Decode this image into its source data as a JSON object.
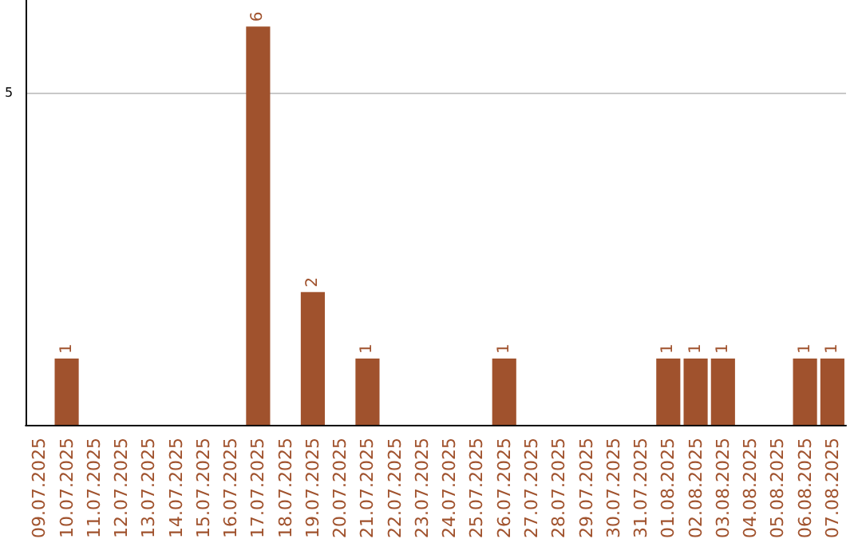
{
  "chart_data": {
    "type": "bar",
    "categories": [
      "09.07.2025",
      "10.07.2025",
      "11.07.2025",
      "12.07.2025",
      "13.07.2025",
      "14.07.2025",
      "15.07.2025",
      "16.07.2025",
      "17.07.2025",
      "18.07.2025",
      "19.07.2025",
      "20.07.2025",
      "21.07.2025",
      "22.07.2025",
      "23.07.2025",
      "24.07.2025",
      "25.07.2025",
      "26.07.2025",
      "27.07.2025",
      "28.07.2025",
      "29.07.2025",
      "30.07.2025",
      "31.07.2025",
      "01.08.2025",
      "02.08.2025",
      "03.08.2025",
      "04.08.2025",
      "05.08.2025",
      "06.08.2025",
      "07.08.2025"
    ],
    "values": [
      0,
      1,
      0,
      0,
      0,
      0,
      0,
      0,
      6,
      0,
      2,
      0,
      1,
      0,
      0,
      0,
      0,
      1,
      0,
      0,
      0,
      0,
      0,
      1,
      1,
      1,
      0,
      0,
      1,
      1
    ],
    "value_labels": [
      null,
      "1",
      null,
      null,
      null,
      null,
      null,
      null,
      "6",
      null,
      "2",
      null,
      "1",
      null,
      null,
      null,
      null,
      "1",
      null,
      null,
      null,
      null,
      null,
      "1",
      "1",
      "1",
      null,
      null,
      "1",
      "1"
    ],
    "color": "#a0522d",
    "ylim": [
      0,
      6.4
    ],
    "yticks": [
      5
    ],
    "grid": "y"
  }
}
